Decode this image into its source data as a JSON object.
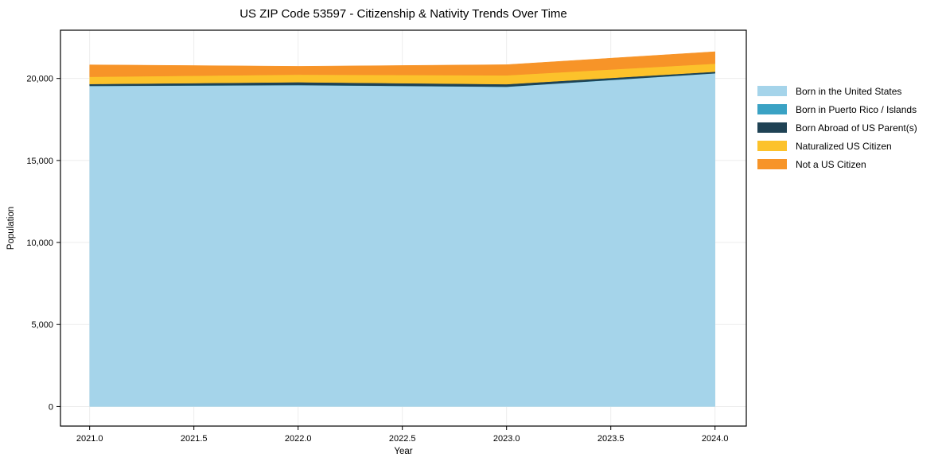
{
  "window": {
    "background": "#ffffff"
  },
  "chart_data": {
    "type": "area",
    "stacked": true,
    "title": "US ZIP Code 53597 - Citizenship & Nativity Trends Over Time",
    "xlabel": "Year",
    "ylabel": "Population",
    "x": [
      2021,
      2022,
      2023,
      2024
    ],
    "series": [
      {
        "name": "Born in the United States",
        "color": "#A5D4EA",
        "values": [
          19540,
          19590,
          19490,
          20310
        ]
      },
      {
        "name": "Born in Puerto Rico / Islands",
        "color": "#3AA2C4",
        "values": [
          10,
          10,
          10,
          10
        ]
      },
      {
        "name": "Born Abroad of US Parent(s)",
        "color": "#1F4254",
        "values": [
          110,
          170,
          150,
          90
        ]
      },
      {
        "name": "Naturalized US Citizen",
        "color": "#FCC22B",
        "values": [
          440,
          460,
          540,
          490
        ]
      },
      {
        "name": "Not a US Citizen",
        "color": "#F79428",
        "values": [
          730,
          510,
          650,
          730
        ]
      }
    ],
    "xticks": [
      2021.0,
      2021.5,
      2022.0,
      2022.5,
      2023.0,
      2023.5,
      2024.0
    ],
    "yticks": [
      0,
      5000,
      10000,
      15000,
      20000
    ],
    "xlim": [
      2020.86,
      2024.15
    ],
    "ylim": [
      -1190,
      22940
    ],
    "grid": true,
    "grid_color": "#ececec",
    "frame_color": "#000000",
    "legend_position": "right-outside"
  }
}
